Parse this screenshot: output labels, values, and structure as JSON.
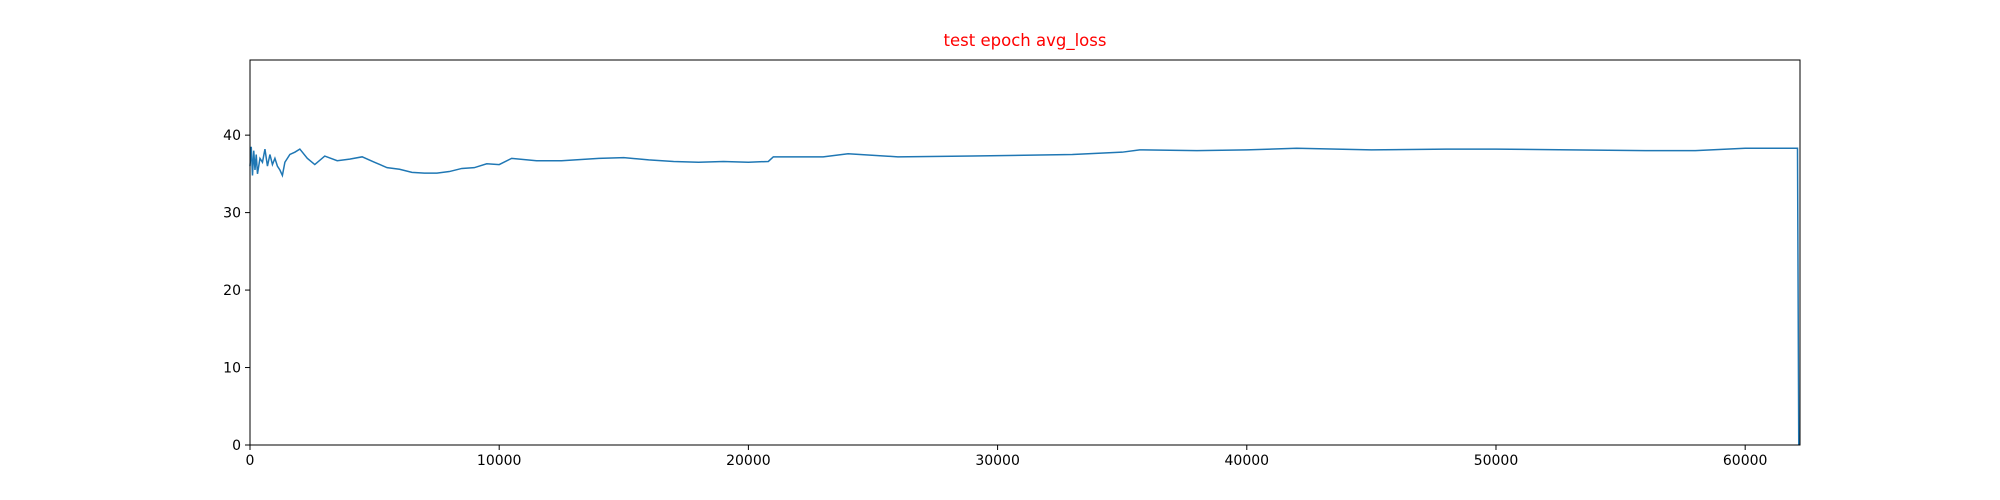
{
  "chart_data": {
    "type": "line",
    "title": "test epoch avg_loss",
    "title_color": "#ff0000",
    "x": [
      0,
      50,
      100,
      150,
      200,
      250,
      300,
      400,
      500,
      600,
      700,
      800,
      900,
      1000,
      1100,
      1200,
      1300,
      1400,
      1600,
      1800,
      2000,
      2300,
      2600,
      3000,
      3500,
      4000,
      4500,
      5000,
      5500,
      6000,
      6500,
      7000,
      7500,
      8000,
      8500,
      9000,
      9500,
      10000,
      10500,
      11500,
      12500,
      14000,
      15000,
      16000,
      17000,
      18000,
      19000,
      20000,
      20800,
      21000,
      22000,
      23000,
      24000,
      26000,
      29000,
      33000,
      35000,
      35700,
      38000,
      40000,
      42000,
      45000,
      48000,
      50000,
      53000,
      56000,
      58000,
      60000,
      62100,
      62150
    ],
    "values": [
      36,
      38.5,
      34.8,
      38,
      35.5,
      37.5,
      35,
      37,
      36.5,
      38.2,
      36,
      37.5,
      36.2,
      37,
      36,
      35.5,
      34.8,
      36.5,
      37.5,
      37.8,
      38.2,
      37,
      36.2,
      37.3,
      36.7,
      36.9,
      37.2,
      36.5,
      35.8,
      35.6,
      35.2,
      35.1,
      35.1,
      35.3,
      35.7,
      35.8,
      36.3,
      36.2,
      37,
      36.7,
      36.7,
      37,
      37.1,
      36.8,
      36.6,
      36.5,
      36.6,
      36.5,
      36.6,
      37.2,
      37.2,
      37.2,
      37.6,
      37.2,
      37.3,
      37.5,
      37.8,
      38.1,
      38.0,
      38.1,
      38.3,
      38.1,
      38.2,
      38.2,
      38.1,
      38.0,
      38.0,
      38.3,
      38.3,
      0
    ],
    "color": "#1f77b4",
    "xlim": [
      0,
      62200
    ],
    "ylim": [
      0,
      49.7
    ],
    "xticks": [
      0,
      10000,
      20000,
      30000,
      40000,
      50000,
      60000
    ],
    "yticks": [
      0,
      10,
      20,
      30,
      40
    ]
  }
}
